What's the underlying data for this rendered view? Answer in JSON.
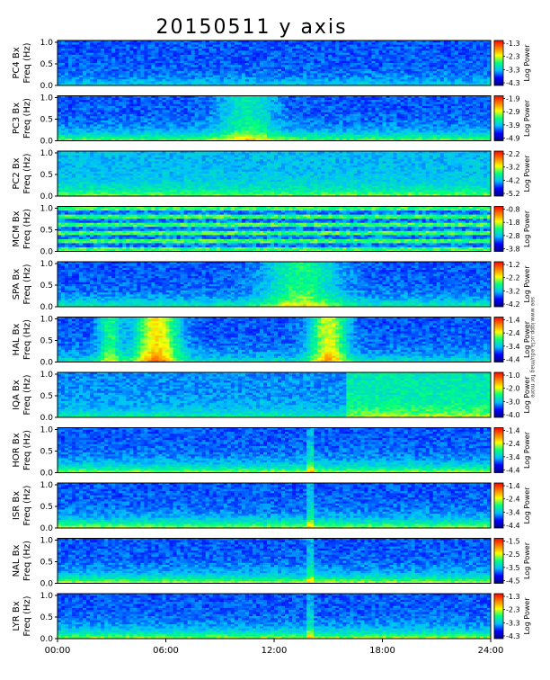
{
  "title": "20150511 y axis",
  "credit": "see www.igpp.ucla.edu/mag for more",
  "colorbar_label": "Log Power",
  "chart_data": {
    "type": "heatmap",
    "x_tick_labels": [
      "00:00",
      "06:00",
      "12:00",
      "18:00",
      "24:00"
    ],
    "x_range_hours": [
      0,
      24
    ],
    "colormap": [
      "#000080",
      "#0000ff",
      "#00bfff",
      "#00ff80",
      "#ffff00",
      "#ff8000",
      "#ff0000"
    ],
    "panels": [
      {
        "station": "PC4",
        "ylabel_1": "PC4  Bx",
        "ylabel_2": "Freq (Hz)",
        "yticks": [
          "1.0",
          "0.5",
          "0.0"
        ],
        "cbar_ticks": [
          "-1.3",
          "-2.3",
          "-3.3",
          "-4.3"
        ]
      },
      {
        "station": "PC3",
        "ylabel_1": "PC3  Bx",
        "ylabel_2": "Freq (Hz)",
        "yticks": [
          "1.0",
          "0.5",
          "0.0"
        ],
        "cbar_ticks": [
          "-1.9",
          "-2.9",
          "-3.9",
          "-4.9"
        ]
      },
      {
        "station": "PC2",
        "ylabel_1": "PC2  Bx",
        "ylabel_2": "Freq (Hz)",
        "yticks": [
          "1.0",
          "0.5",
          "0.0"
        ],
        "cbar_ticks": [
          "-2.2",
          "-3.2",
          "-4.2",
          "-5.2"
        ]
      },
      {
        "station": "MCM",
        "ylabel_1": "MCM  Bx",
        "ylabel_2": "Freq (Hz)",
        "yticks": [
          "1.0",
          "0.5",
          "0.0"
        ],
        "cbar_ticks": [
          "-0.8",
          "-1.8",
          "-2.8",
          "-3.8"
        ]
      },
      {
        "station": "SPA",
        "ylabel_1": "SPA  Bx",
        "ylabel_2": "Freq (Hz)",
        "yticks": [
          "1.0",
          "0.5",
          "0.0"
        ],
        "cbar_ticks": [
          "-1.2",
          "-2.2",
          "-3.2",
          "-4.2"
        ]
      },
      {
        "station": "HAL",
        "ylabel_1": "HAL  Bx",
        "ylabel_2": "Freq (Hz)",
        "yticks": [
          "1.0",
          "0.5",
          "0.0"
        ],
        "cbar_ticks": [
          "-1.4",
          "-2.4",
          "-3.4",
          "-4.4"
        ]
      },
      {
        "station": "IQA",
        "ylabel_1": "IQA  Bx",
        "ylabel_2": "Freq (Hz)",
        "yticks": [
          "1.0",
          "0.5",
          "0.0"
        ],
        "cbar_ticks": [
          "-1.0",
          "-2.0",
          "-3.0",
          "-4.0"
        ]
      },
      {
        "station": "HOR",
        "ylabel_1": "HOR  Bx",
        "ylabel_2": "Freq (Hz)",
        "yticks": [
          "1.0",
          "0.5",
          "0.0"
        ],
        "cbar_ticks": [
          "-1.4",
          "-2.4",
          "-3.4",
          "-4.4"
        ]
      },
      {
        "station": "ISR",
        "ylabel_1": "ISR  Bx",
        "ylabel_2": "Freq (Hz)",
        "yticks": [
          "1.0",
          "0.5",
          "0.0"
        ],
        "cbar_ticks": [
          "-1.4",
          "-2.4",
          "-3.4",
          "-4.4"
        ]
      },
      {
        "station": "NAL",
        "ylabel_1": "NAL  Bx",
        "ylabel_2": "Freq (Hz)",
        "yticks": [
          "1.0",
          "0.5",
          "0.0"
        ],
        "cbar_ticks": [
          "-1.5",
          "-2.5",
          "-3.5",
          "-4.5"
        ]
      },
      {
        "station": "LYR",
        "ylabel_1": "LYR  Bx",
        "ylabel_2": "Freq (Hz)",
        "yticks": [
          "1.0",
          "0.5",
          "0.0"
        ],
        "cbar_ticks": [
          "-1.3",
          "-2.3",
          "-3.3",
          "-4.3"
        ]
      }
    ]
  }
}
